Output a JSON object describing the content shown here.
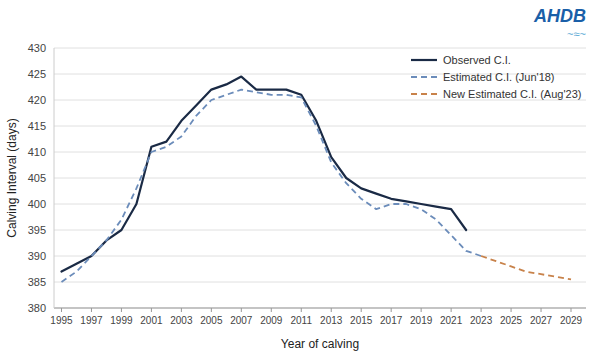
{
  "chart_data": {
    "type": "line",
    "xlabel": "Year of calving",
    "ylabel": "Calving Interval (days)",
    "series": [
      {
        "name": "Observed C.I.",
        "color": "#1a2a45",
        "line_style": "solid",
        "x": [
          1995,
          1996,
          1997,
          1998,
          1999,
          2000,
          2001,
          2002,
          2003,
          2004,
          2005,
          2006,
          2007,
          2008,
          2009,
          2010,
          2011,
          2012,
          2013,
          2014,
          2015,
          2016,
          2017,
          2018,
          2019,
          2020,
          2021,
          2022
        ],
        "values": [
          387,
          388.5,
          390,
          393,
          395,
          400,
          411,
          412,
          416,
          419,
          422,
          423,
          424.5,
          422,
          422,
          422,
          421,
          416,
          409,
          405,
          403,
          402,
          401,
          400.5,
          400,
          399.5,
          399,
          395
        ]
      },
      {
        "name": "Estimated C.I. (Jun'18)",
        "color": "#6b8cba",
        "line_style": "dashed",
        "x": [
          1995,
          1996,
          1997,
          1998,
          1999,
          2000,
          2001,
          2002,
          2003,
          2004,
          2005,
          2006,
          2007,
          2008,
          2009,
          2010,
          2011,
          2012,
          2013,
          2014,
          2015,
          2016,
          2017,
          2018,
          2019,
          2020,
          2021,
          2022,
          2023
        ],
        "values": [
          385,
          387,
          390,
          393,
          397,
          403,
          410,
          411,
          413,
          417,
          420,
          421,
          422,
          421.5,
          421,
          421,
          420.5,
          415,
          408,
          404,
          401,
          399,
          400,
          400,
          399,
          397,
          394,
          391,
          390
        ]
      },
      {
        "name": "New Estimated C.I. (Aug'23)",
        "color": "#c8824a",
        "line_style": "dashed",
        "x": [
          2023,
          2024,
          2025,
          2026,
          2027,
          2028,
          2029
        ],
        "values": [
          390,
          389,
          388,
          387,
          386.5,
          386,
          385.5
        ]
      }
    ],
    "xlim": [
      1994.5,
      2030
    ],
    "ylim": [
      380,
      430
    ],
    "xticks": [
      1995,
      1997,
      1999,
      2001,
      2003,
      2005,
      2007,
      2009,
      2011,
      2013,
      2015,
      2017,
      2019,
      2021,
      2023,
      2025,
      2027,
      2029
    ],
    "yticks": [
      380,
      385,
      390,
      395,
      400,
      405,
      410,
      415,
      420,
      425,
      430
    ],
    "grid": true,
    "legend": "upper right",
    "annotations": [
      {
        "text": "AHDB",
        "color": "#1a5fa8"
      },
      {
        "text": "~≈~",
        "color": "#5aaad5"
      }
    ]
  }
}
